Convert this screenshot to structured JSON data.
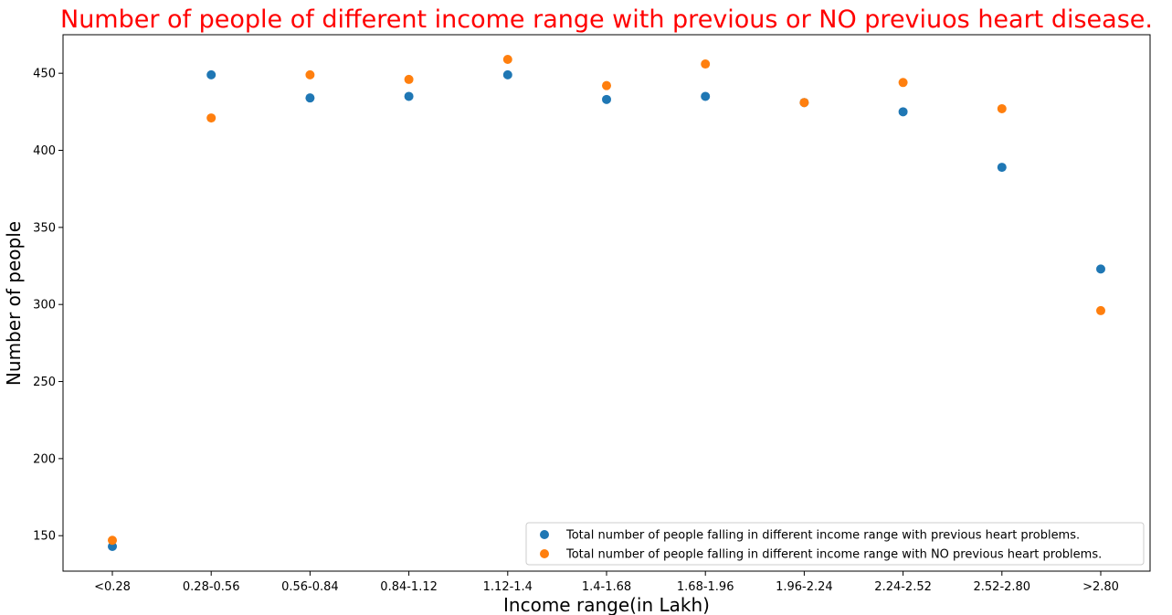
{
  "chart_data": {
    "type": "scatter",
    "title": "Number of people of different income range with previous or NO previuos heart disease.",
    "title_color": "#ff0000",
    "xlabel": "Income range(in Lakh)",
    "ylabel": "Number of people",
    "categories": [
      "<0.28",
      "0.28-0.56",
      "0.56-0.84",
      "0.84-1.12",
      "1.12-1.4",
      "1.4-1.68",
      "1.68-1.96",
      "1.96-2.24",
      "2.24-2.52",
      "2.52-2.80",
      ">2.80"
    ],
    "y_ticks": [
      150,
      200,
      250,
      300,
      350,
      400,
      450
    ],
    "ylim": [
      127,
      475
    ],
    "grid": false,
    "legend_position": "lower-right",
    "series": [
      {
        "name": "Total number of people falling in different income range with previous heart problems.",
        "color": "#1f77b4",
        "values": [
          143,
          449,
          434,
          435,
          449,
          433,
          435,
          431,
          425,
          389,
          323
        ]
      },
      {
        "name": "Total number of people falling in different income range with NO previous heart problems.",
        "color": "#ff7f0e",
        "values": [
          147,
          421,
          449,
          446,
          459,
          442,
          456,
          431,
          444,
          427,
          296
        ]
      }
    ]
  }
}
